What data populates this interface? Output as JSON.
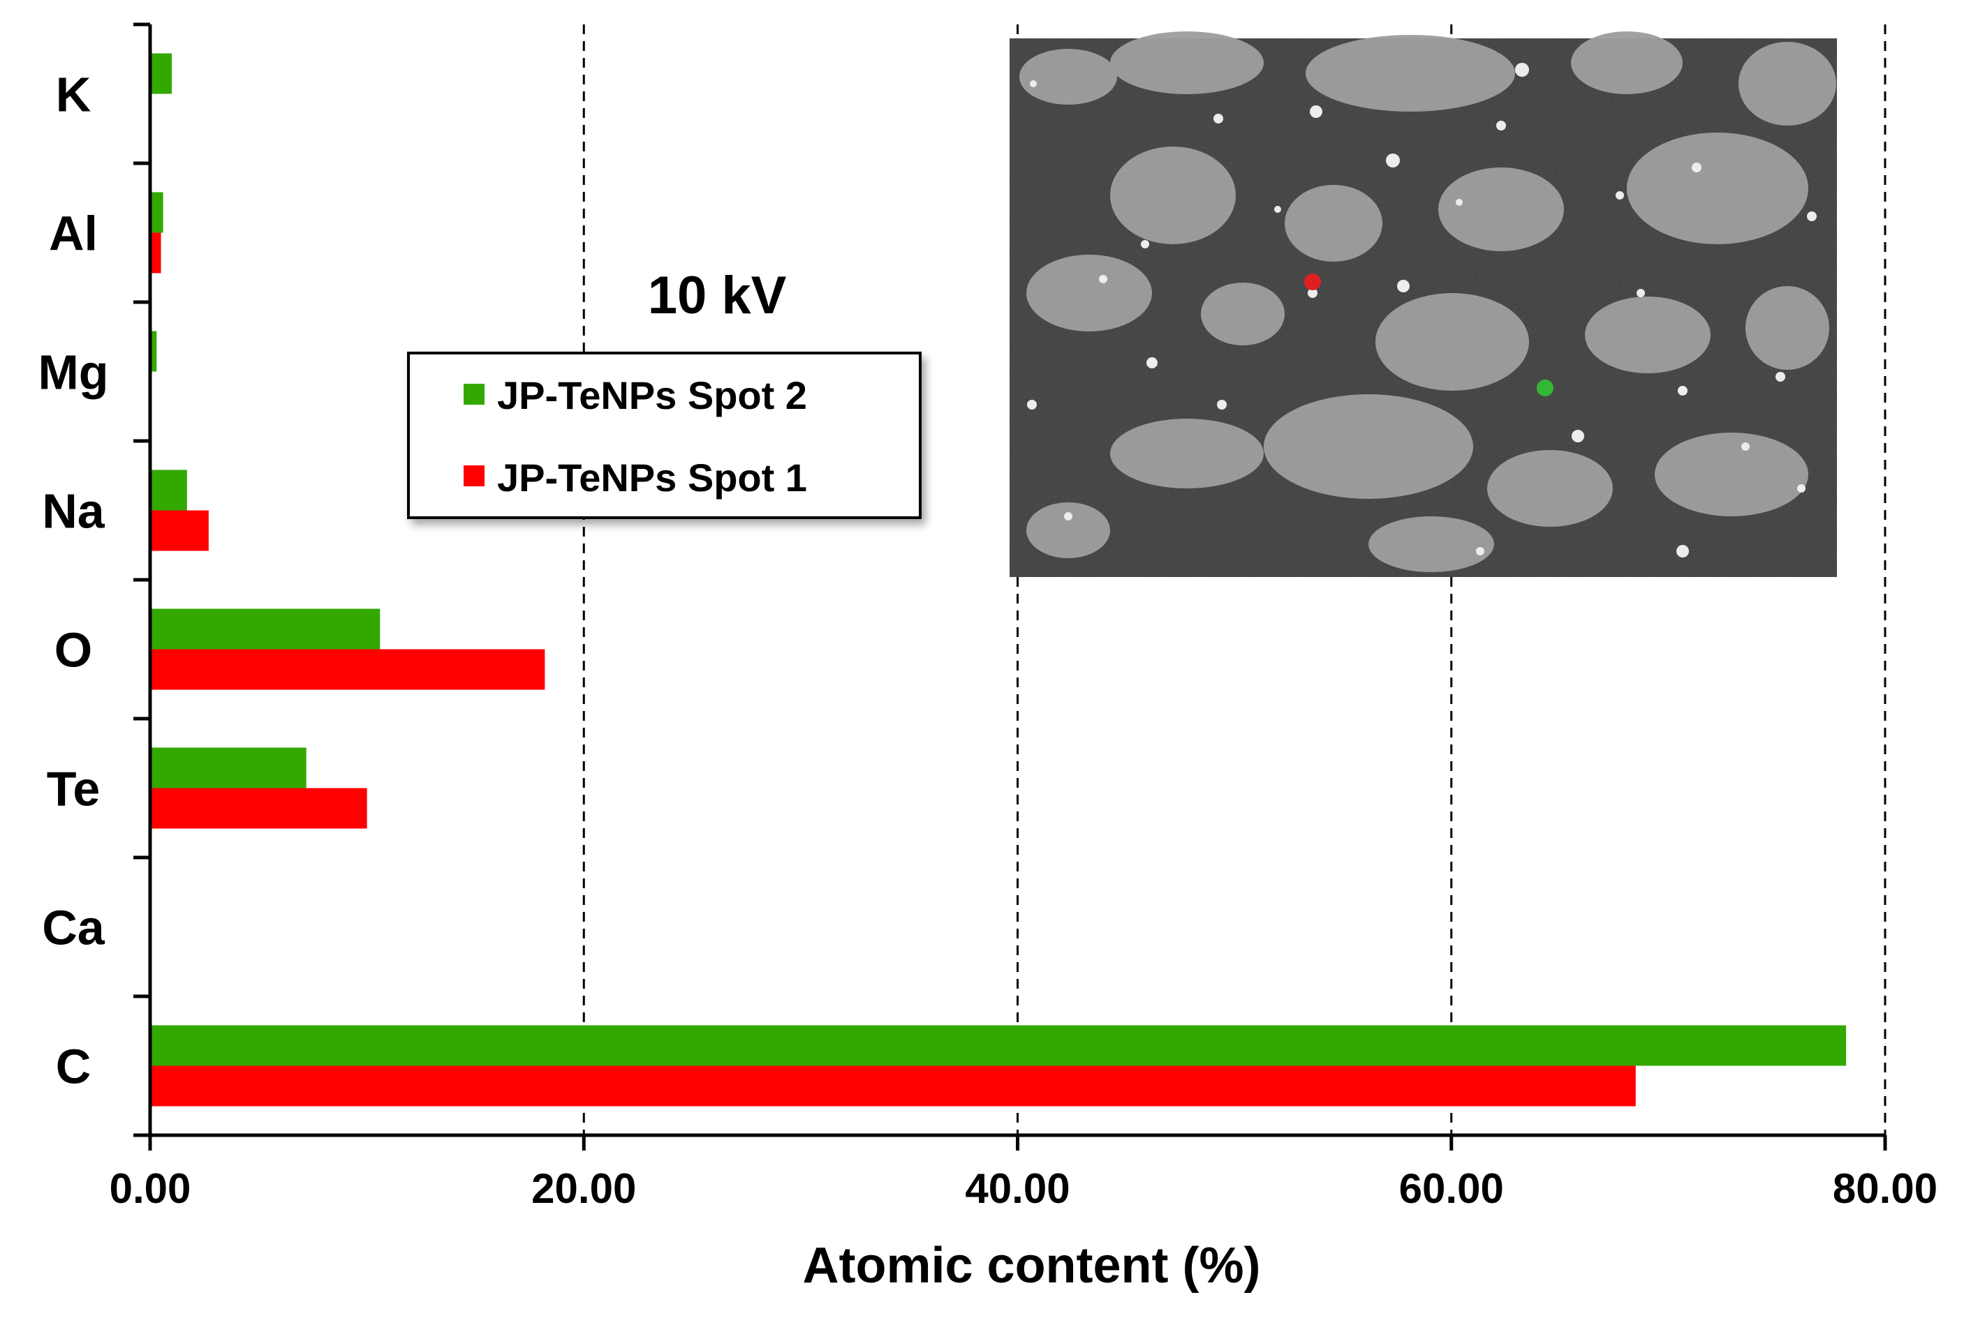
{
  "chart_data": {
    "type": "bar",
    "orientation": "horizontal",
    "categories": [
      "K",
      "Al",
      "Mg",
      "Na",
      "O",
      "Te",
      "Ca",
      "C"
    ],
    "series": [
      {
        "name": "JP-TeNPs Spot 2",
        "color": "#33a800",
        "values": [
          1.0,
          0.6,
          0.3,
          1.7,
          10.6,
          7.2,
          0.0,
          78.2
        ]
      },
      {
        "name": "JP-TeNPs Spot 1",
        "color": "#ff0000",
        "values": [
          0.0,
          0.5,
          0.0,
          2.7,
          18.2,
          10.0,
          0.0,
          68.5
        ]
      }
    ],
    "xlabel": "Atomic content (%)",
    "ylabel": "",
    "xlim": [
      0,
      80
    ],
    "xticks": [
      "0.00",
      "20.00",
      "40.00",
      "60.00",
      "80.00"
    ],
    "grid": "vertical dashed",
    "annotation": "10 kV",
    "legend": {
      "placement": "center-top",
      "entries": [
        "JP-TeNPs Spot 2",
        "JP-TeNPs Spot 1"
      ]
    },
    "inset": "SEM micrograph (top-right) with red and green spot markers"
  }
}
